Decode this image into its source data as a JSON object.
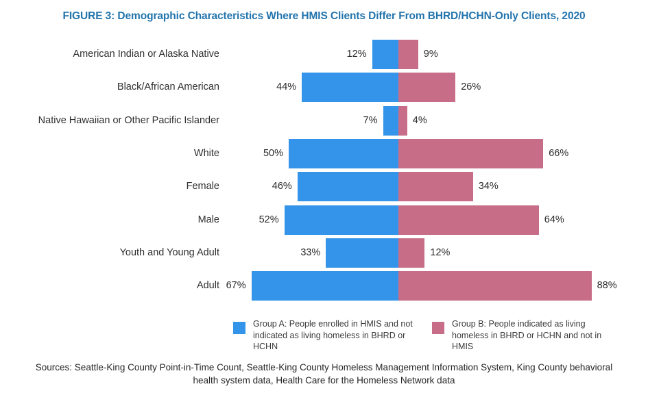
{
  "title": "FIGURE 3: Demographic Characteristics Where HMIS Clients Differ From BHRD/HCHN-Only Clients, 2020",
  "chart_data": {
    "type": "bar",
    "variant": "diverging-horizontal",
    "title": "FIGURE 3: Demographic Characteristics Where HMIS Clients Differ From BHRD/HCHN-Only Clients, 2020",
    "categories": [
      "American Indian or Alaska Native",
      "Black/African American",
      "Native Hawaiian or Other Pacific Islander",
      "White",
      "Female",
      "Male",
      "Youth and Young Adult",
      "Adult"
    ],
    "series": [
      {
        "name": "Group A: People enrolled in HMIS and not indicated as living homeless in BHRD or HCHN",
        "side": "left",
        "color": "#3394E9",
        "values": [
          12,
          44,
          7,
          50,
          46,
          52,
          33,
          67
        ]
      },
      {
        "name": "Group B: People indicated as living homeless in BHRD or HCHN and not in HMIS",
        "side": "right",
        "color": "#C76D88",
        "values": [
          9,
          26,
          4,
          66,
          34,
          64,
          12,
          88
        ]
      }
    ],
    "value_label_suffix": "%",
    "axis_labels": "none",
    "gridlines": false,
    "legend_position": "bottom",
    "xlim_percent": [
      -70,
      90
    ]
  },
  "legend": {
    "group_a": "Group A: People enrolled in HMIS and not\nindicated as living homeless in BHRD or\nHCHN",
    "group_b": "Group B: People indicated as living\nhomeless in BHRD or HCHN and not in\nHMIS"
  },
  "sources": "Sources:  Seattle-King County Point-in-Time Count, Seattle-King County Homeless Management Information System, King County behavioral\nhealth system data, Health Care for the Homeless Network data",
  "colors": {
    "title": "#2274AD",
    "group_a": "#3394E9",
    "group_b": "#C76D88",
    "text": "#2f2f2f"
  }
}
